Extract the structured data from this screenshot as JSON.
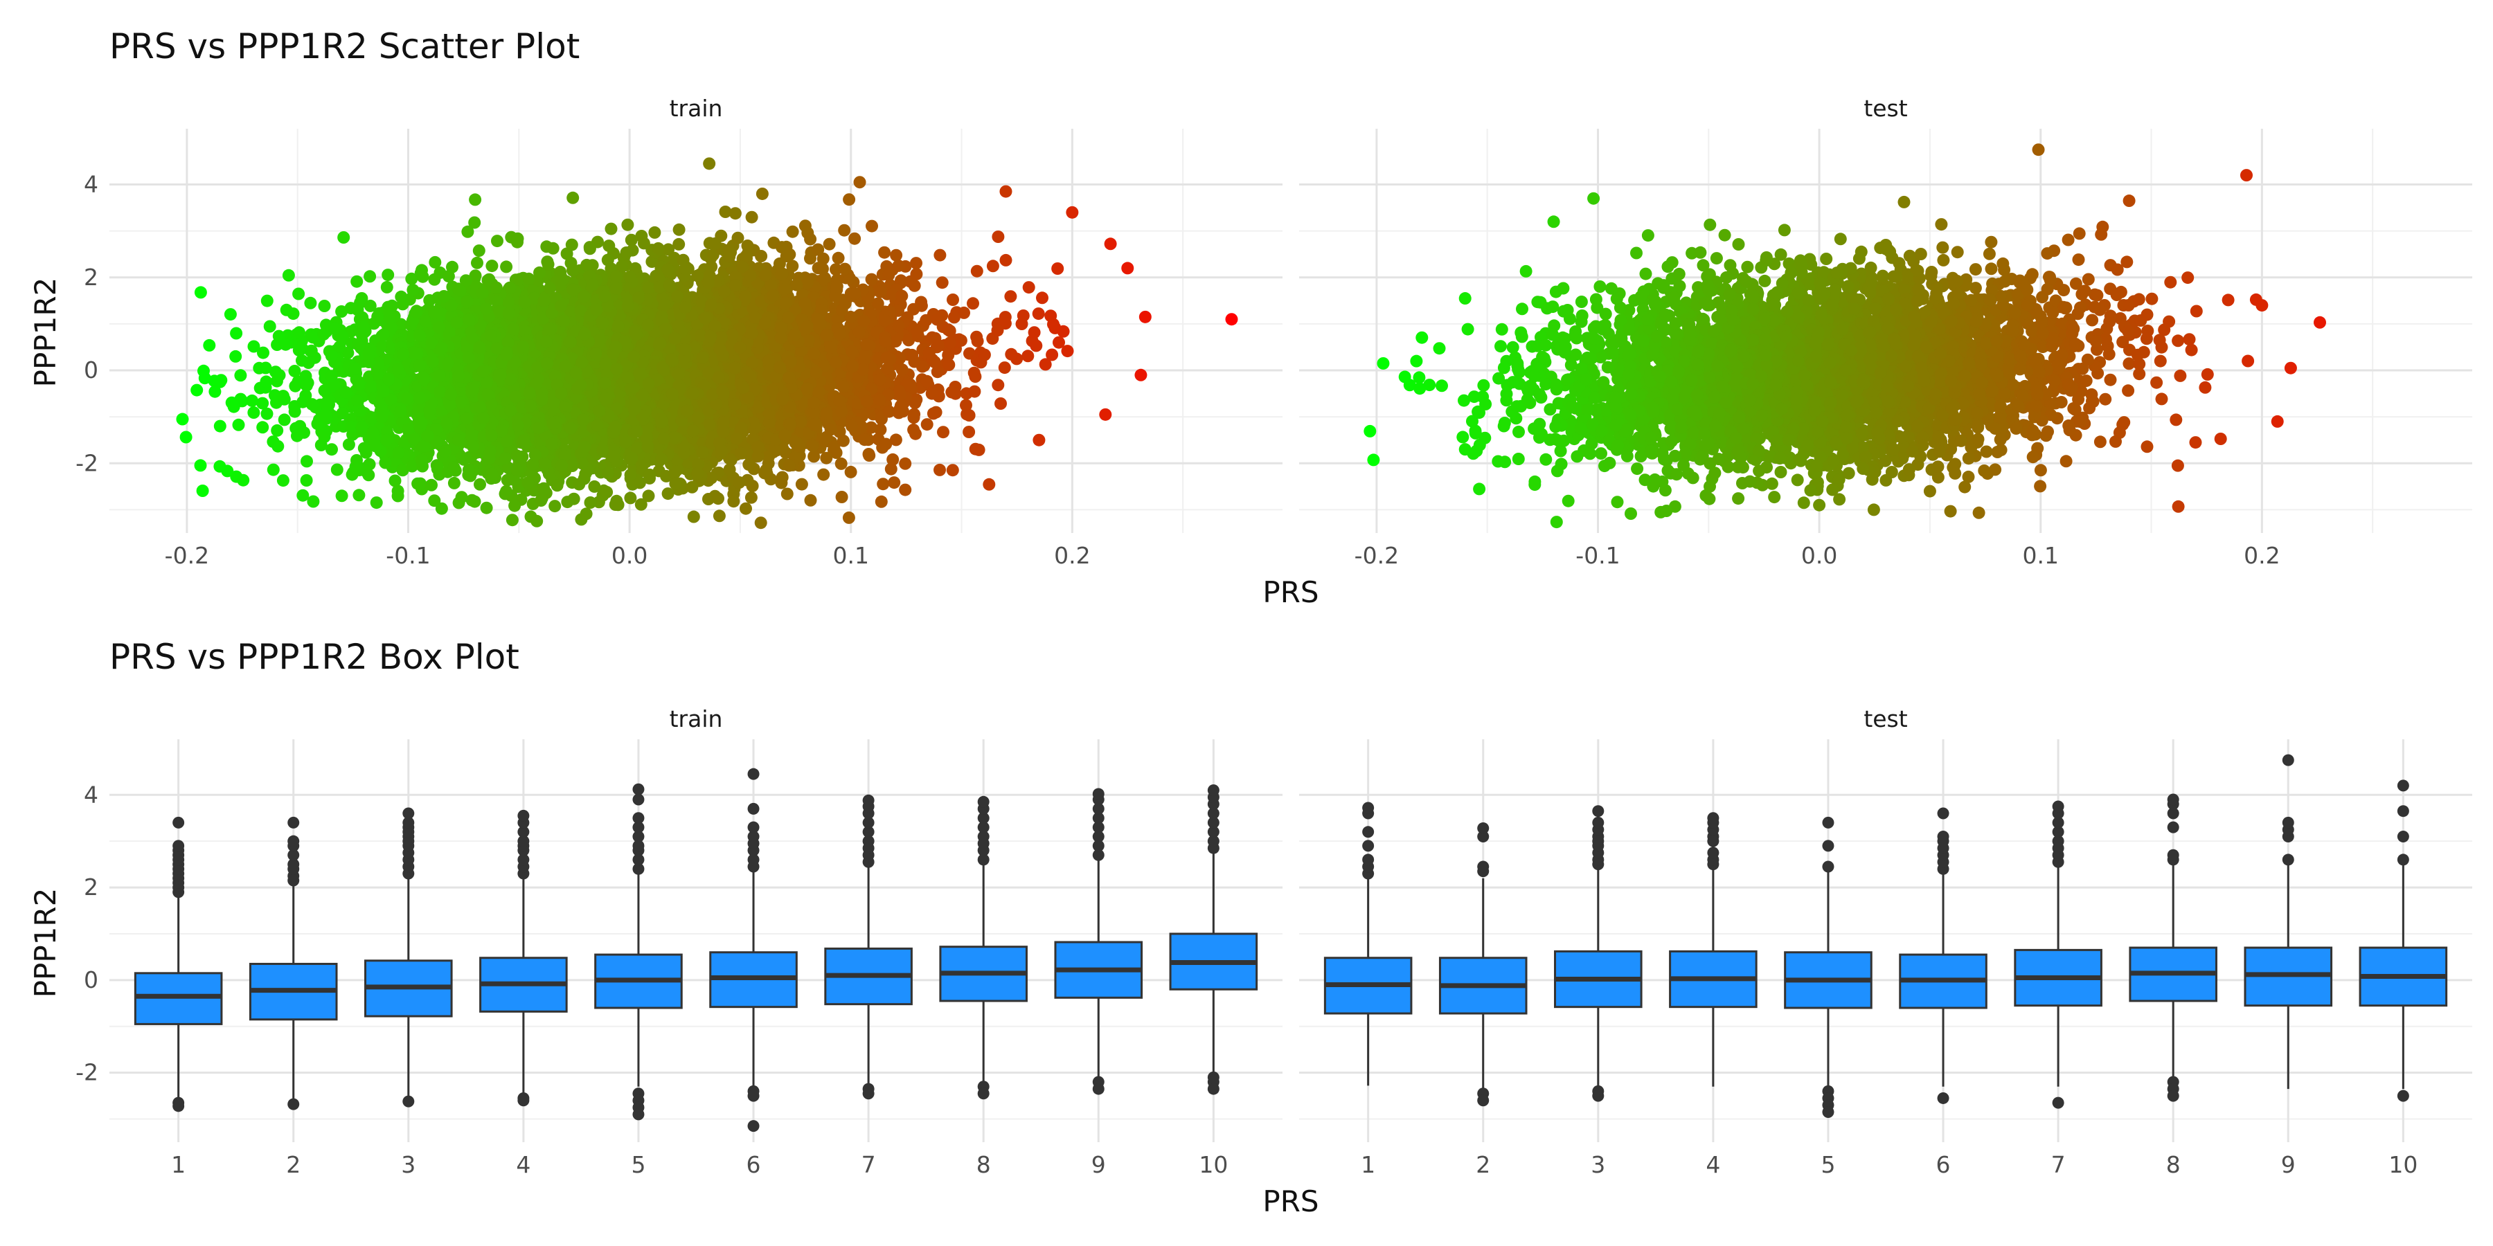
{
  "chart_data": [
    {
      "type": "scatter",
      "title": "PRS vs PPP1R2 Scatter Plot",
      "xlabel": "PRS",
      "ylabel": "PPP1R2",
      "facets": [
        "train",
        "test"
      ],
      "xlim": [
        -0.235,
        0.295
      ],
      "ylim": [
        -3.5,
        5.2
      ],
      "xticks": [
        -0.2,
        -0.1,
        0.0,
        0.1,
        0.2
      ],
      "xtick_labels": [
        "-0.2",
        "-0.1",
        "0.0",
        "0.1",
        "0.2"
      ],
      "yticks": [
        -2,
        0,
        2,
        4
      ],
      "ytick_labels": [
        "-2",
        "0",
        "2",
        "4"
      ],
      "grid": true,
      "legend": "none",
      "color_gradient": [
        "#00ff00",
        "#ff0000"
      ],
      "color_mapped_to": "PRS",
      "series": [
        {
          "name": "train",
          "point_cloud": {
            "x_mean": 0.0,
            "x_sd": 0.06,
            "y_mean": 0.0,
            "y_sd": 1.0,
            "approx_n": 20000
          },
          "extreme_points": [
            {
              "x": -0.202,
              "y": -1.05
            },
            {
              "x": 0.272,
              "y": 1.1
            },
            {
              "x": 0.036,
              "y": 4.45
            },
            {
              "x": 0.104,
              "y": 4.05
            },
            {
              "x": 0.029,
              "y": -3.15
            },
            {
              "x": -0.185,
              "y": -1.2
            },
            {
              "x": 0.233,
              "y": 1.15
            },
            {
              "x": 0.231,
              "y": -0.1
            },
            {
              "x": 0.225,
              "y": 2.2
            },
            {
              "x": 0.215,
              "y": -0.95
            },
            {
              "x": 0.2,
              "y": 3.4
            },
            {
              "x": -0.13,
              "y": -2.7
            },
            {
              "x": 0.17,
              "y": 3.85
            },
            {
              "x": -0.178,
              "y": 0.3
            },
            {
              "x": 0.185,
              "y": -1.5
            },
            {
              "x": -0.155,
              "y": 1.3
            },
            {
              "x": 0.06,
              "y": 3.8
            },
            {
              "x": -0.04,
              "y": -2.8
            }
          ]
        },
        {
          "name": "test",
          "point_cloud": {
            "x_mean": 0.0,
            "x_sd": 0.06,
            "y_mean": 0.0,
            "y_sd": 1.0,
            "approx_n": 5000
          },
          "extreme_points": [
            {
              "x": -0.197,
              "y": 0.15
            },
            {
              "x": -0.182,
              "y": 0.2
            },
            {
              "x": 0.099,
              "y": 4.75
            },
            {
              "x": 0.193,
              "y": 4.2
            },
            {
              "x": 0.213,
              "y": 0.05
            },
            {
              "x": 0.207,
              "y": -1.1
            },
            {
              "x": -0.16,
              "y": 1.55
            },
            {
              "x": -0.102,
              "y": 3.7
            },
            {
              "x": 0.162,
              "y": -2.05
            },
            {
              "x": 0.14,
              "y": 3.65
            },
            {
              "x": 0.0,
              "y": -2.9
            },
            {
              "x": -0.12,
              "y": 3.2
            },
            {
              "x": -0.16,
              "y": -1.7
            },
            {
              "x": 0.2,
              "y": 1.4
            },
            {
              "x": 0.17,
              "y": -1.55
            },
            {
              "x": 0.05,
              "y": -2.6
            }
          ]
        }
      ]
    },
    {
      "type": "box",
      "title": "PRS vs PPP1R2 Box Plot",
      "xlabel": "PRS",
      "ylabel": "PPP1R2",
      "facets": [
        "train",
        "test"
      ],
      "categories": [
        "1",
        "2",
        "3",
        "4",
        "5",
        "6",
        "7",
        "8",
        "9",
        "10"
      ],
      "ylim": [
        -3.5,
        5.2
      ],
      "yticks": [
        -2,
        0,
        2,
        4
      ],
      "ytick_labels": [
        "-2",
        "0",
        "2",
        "4"
      ],
      "grid": true,
      "legend": "none",
      "box_fill": "#1e90ff",
      "series": [
        {
          "name": "train",
          "boxes": [
            {
              "q1": -0.95,
              "median": -0.35,
              "q3": 0.15,
              "low": -2.55,
              "high": 1.8,
              "outliers": [
                -2.65,
                -2.72,
                1.9,
                2.0,
                2.1,
                2.2,
                2.3,
                2.4,
                2.5,
                2.6,
                2.7,
                2.8,
                2.9,
                3.4
              ]
            },
            {
              "q1": -0.85,
              "median": -0.22,
              "q3": 0.35,
              "low": -2.6,
              "high": 2.05,
              "outliers": [
                -2.68,
                2.15,
                2.25,
                2.4,
                2.5,
                2.7,
                2.9,
                3.0,
                3.4
              ]
            },
            {
              "q1": -0.78,
              "median": -0.15,
              "q3": 0.42,
              "low": -2.5,
              "high": 2.2,
              "outliers": [
                -2.62,
                2.3,
                2.45,
                2.6,
                2.75,
                2.9,
                3.0,
                3.1,
                3.2,
                3.3,
                3.4,
                3.6
              ]
            },
            {
              "q1": -0.68,
              "median": -0.08,
              "q3": 0.48,
              "low": -2.45,
              "high": 2.2,
              "outliers": [
                -2.55,
                -2.6,
                2.3,
                2.45,
                2.6,
                2.8,
                2.9,
                3.0,
                3.2,
                3.4,
                3.55
              ]
            },
            {
              "q1": -0.6,
              "median": 0.0,
              "q3": 0.55,
              "low": -2.3,
              "high": 2.3,
              "outliers": [
                -2.45,
                -2.6,
                -2.75,
                -2.9,
                2.4,
                2.6,
                2.8,
                2.9,
                3.1,
                3.3,
                3.5,
                3.9,
                4.12
              ]
            },
            {
              "q1": -0.58,
              "median": 0.05,
              "q3": 0.6,
              "low": -2.3,
              "high": 2.35,
              "outliers": [
                -2.4,
                -2.5,
                -3.15,
                2.45,
                2.6,
                2.8,
                2.95,
                3.1,
                3.3,
                3.7,
                4.45
              ]
            },
            {
              "q1": -0.52,
              "median": 0.1,
              "q3": 0.68,
              "low": -2.3,
              "high": 2.45,
              "outliers": [
                -2.35,
                -2.45,
                2.55,
                2.7,
                2.85,
                3.0,
                3.2,
                3.4,
                3.6,
                3.75,
                3.88
              ]
            },
            {
              "q1": -0.45,
              "median": 0.15,
              "q3": 0.72,
              "low": -2.3,
              "high": 2.5,
              "outliers": [
                -2.3,
                -2.45,
                2.6,
                2.8,
                2.95,
                3.1,
                3.3,
                3.5,
                3.7,
                3.85
              ]
            },
            {
              "q1": -0.38,
              "median": 0.22,
              "q3": 0.82,
              "low": -2.1,
              "high": 2.6,
              "outliers": [
                -2.2,
                -2.35,
                2.7,
                2.9,
                3.1,
                3.3,
                3.5,
                3.7,
                3.9,
                4.02
              ]
            },
            {
              "q1": -0.2,
              "median": 0.38,
              "q3": 1.0,
              "low": -2.0,
              "high": 2.75,
              "outliers": [
                -2.1,
                -2.2,
                -2.35,
                2.85,
                3.0,
                3.2,
                3.4,
                3.6,
                3.8,
                3.95,
                4.1
              ]
            }
          ]
        },
        {
          "name": "test",
          "boxes": [
            {
              "q1": -0.72,
              "median": -0.1,
              "q3": 0.48,
              "low": -2.28,
              "high": 2.2,
              "outliers": [
                2.3,
                2.45,
                2.6,
                2.9,
                3.2,
                3.6,
                3.72
              ]
            },
            {
              "q1": -0.72,
              "median": -0.12,
              "q3": 0.48,
              "low": -2.35,
              "high": 2.2,
              "outliers": [
                -2.45,
                -2.6,
                2.35,
                2.45,
                3.1,
                3.28
              ]
            },
            {
              "q1": -0.58,
              "median": 0.02,
              "q3": 0.62,
              "low": -2.35,
              "high": 2.4,
              "outliers": [
                -2.4,
                -2.5,
                2.5,
                2.6,
                2.75,
                2.9,
                3.0,
                3.1,
                3.25,
                3.4,
                3.65
              ]
            },
            {
              "q1": -0.58,
              "median": 0.03,
              "q3": 0.62,
              "low": -2.3,
              "high": 2.4,
              "outliers": [
                2.5,
                2.6,
                2.75,
                3.0,
                3.1,
                3.25,
                3.4,
                3.5
              ]
            },
            {
              "q1": -0.6,
              "median": 0.0,
              "q3": 0.6,
              "low": -2.3,
              "high": 2.35,
              "outliers": [
                -2.4,
                -2.55,
                -2.7,
                -2.85,
                2.45,
                2.9,
                3.4
              ]
            },
            {
              "q1": -0.6,
              "median": 0.0,
              "q3": 0.55,
              "low": -2.3,
              "high": 2.3,
              "outliers": [
                -2.55,
                2.4,
                2.55,
                2.7,
                2.85,
                3.0,
                3.1,
                3.6
              ]
            },
            {
              "q1": -0.55,
              "median": 0.05,
              "q3": 0.65,
              "low": -2.3,
              "high": 2.45,
              "outliers": [
                -2.65,
                2.55,
                2.7,
                2.85,
                3.0,
                3.2,
                3.4,
                3.6,
                3.75
              ]
            },
            {
              "q1": -0.45,
              "median": 0.15,
              "q3": 0.7,
              "low": -2.15,
              "high": 2.5,
              "outliers": [
                -2.2,
                -2.35,
                -2.5,
                2.6,
                2.7,
                3.3,
                3.6,
                3.8,
                3.9
              ]
            },
            {
              "q1": -0.55,
              "median": 0.12,
              "q3": 0.7,
              "low": -2.35,
              "high": 2.5,
              "outliers": [
                2.6,
                3.1,
                3.25,
                3.4,
                4.75
              ]
            },
            {
              "q1": -0.55,
              "median": 0.08,
              "q3": 0.7,
              "low": -2.35,
              "high": 2.5,
              "outliers": [
                -2.5,
                2.6,
                3.1,
                3.65,
                4.2
              ]
            }
          ]
        }
      ]
    }
  ]
}
